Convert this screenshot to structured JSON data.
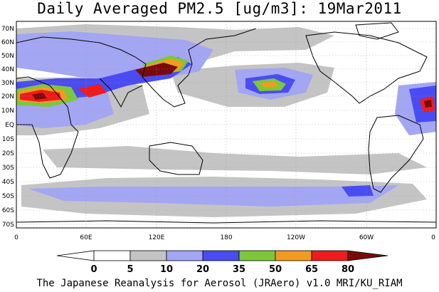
{
  "title": "Daily Averaged PM2.5 [ug/m3]: 19Mar2011",
  "footer": "The Japanese Reanalysis for Aerosol (JRAero) v1.0 MRI/KU_RIAM",
  "lat_labels": [
    "70N",
    "60N",
    "50N",
    "40N",
    "30N",
    "20N",
    "10N",
    "EQ",
    "10S",
    "20S",
    "30S",
    "40S",
    "50S",
    "60S",
    "70S"
  ],
  "lon_labels": [
    "0",
    "60E",
    "120E",
    "180",
    "120W",
    "60W",
    "0"
  ],
  "colorbar": {
    "labels": [
      "0",
      "5",
      "10",
      "20",
      "35",
      "50",
      "65",
      "80"
    ],
    "colors": [
      "#ffffff",
      "#c4c4c4",
      "#a3a6f2",
      "#4a4cf2",
      "#7cc73c",
      "#f39b1f",
      "#ee1c1c",
      "#7a0a0a"
    ]
  }
}
